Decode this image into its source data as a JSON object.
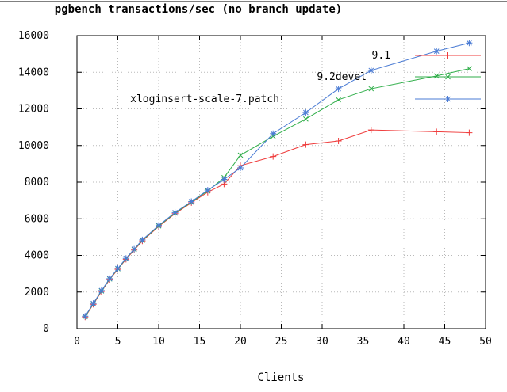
{
  "chart_data": {
    "type": "line",
    "title": "pgbench transactions/sec (no branch update)",
    "xlabel": "Clients",
    "ylabel": "",
    "xlim": [
      0,
      50
    ],
    "ylim": [
      0,
      16000
    ],
    "xticks": [
      0,
      5,
      10,
      15,
      20,
      25,
      30,
      35,
      40,
      45,
      50
    ],
    "yticks": [
      0,
      2000,
      4000,
      6000,
      8000,
      10000,
      12000,
      14000,
      16000
    ],
    "grid": true,
    "legend_position": "top-right-inside",
    "x": [
      1,
      2,
      3,
      4,
      5,
      6,
      7,
      8,
      10,
      12,
      14,
      16,
      18,
      20,
      24,
      28,
      32,
      36,
      44,
      48
    ],
    "series": [
      {
        "name": "9.1",
        "color": "#ef3b3b",
        "marker": "plus",
        "values": [
          640,
          1330,
          2030,
          2680,
          3240,
          3790,
          4290,
          4790,
          5580,
          6280,
          6880,
          7450,
          7900,
          8900,
          9400,
          10050,
          10250,
          10850,
          10750,
          10700
        ]
      },
      {
        "name": "9.2devel",
        "color": "#2fae49",
        "marker": "cross",
        "values": [
          660,
          1360,
          2060,
          2710,
          3270,
          3820,
          4320,
          4820,
          5610,
          6310,
          6910,
          7520,
          8250,
          9470,
          10500,
          11450,
          12500,
          13100,
          13800,
          14200
        ]
      },
      {
        "name": "xloginsert-scale-7.patch",
        "color": "#4a7bd4",
        "marker": "asterisk",
        "values": [
          680,
          1380,
          2080,
          2730,
          3290,
          3840,
          4340,
          4850,
          5640,
          6340,
          6940,
          7560,
          8150,
          8780,
          10650,
          11800,
          13100,
          14100,
          15150,
          15600
        ]
      }
    ]
  }
}
